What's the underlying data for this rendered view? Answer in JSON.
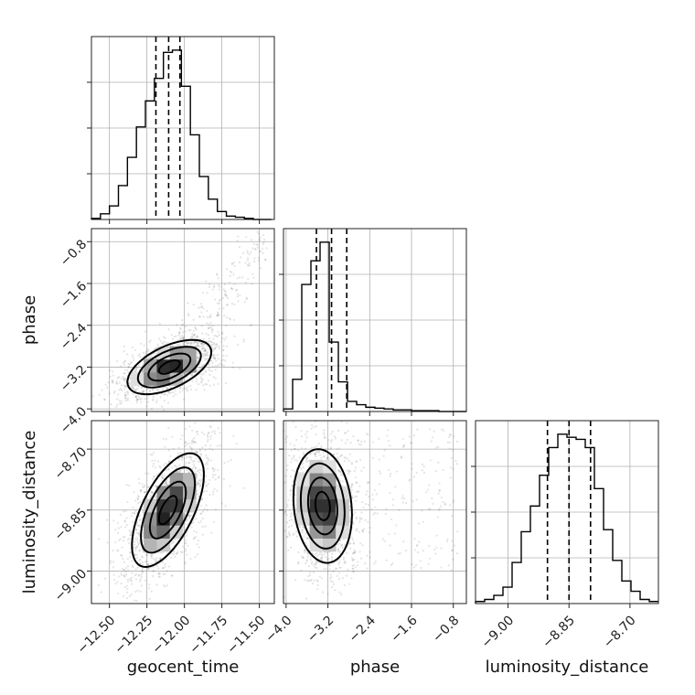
{
  "chart_data": {
    "type": "corner",
    "parameters": [
      {
        "name": "geocent_time",
        "range": [
          -12.62,
          -11.4
        ],
        "ticks": [
          -12.5,
          -12.25,
          -12.0,
          -11.75,
          -11.5
        ],
        "tick_labels": [
          "−12.50",
          "−12.25",
          "−12.00",
          "−11.75",
          "−11.50"
        ],
        "quantiles": [
          -12.19,
          -12.105,
          -12.03
        ]
      },
      {
        "name": "phase",
        "range": [
          -4.05,
          -0.55
        ],
        "ticks": [
          -4.0,
          -3.2,
          -2.4,
          -1.6,
          -0.8
        ],
        "tick_labels": [
          "−4.0",
          "−3.2",
          "−2.4",
          "−1.6",
          "−0.8"
        ],
        "quantiles": [
          -3.42,
          -3.13,
          -2.84
        ]
      },
      {
        "name": "luminosity_distance",
        "range": [
          -9.08,
          -8.63
        ],
        "ticks": [
          -9.0,
          -8.85,
          -8.7
        ],
        "tick_labels": [
          "−9.00",
          "−8.85",
          "−8.70"
        ],
        "quantiles": [
          -8.903,
          -8.85,
          -8.797
        ]
      }
    ],
    "histograms": [
      {
        "parameter": "geocent_time",
        "edges": [
          -12.62,
          -12.56,
          -12.5,
          -12.44,
          -12.38,
          -12.32,
          -12.26,
          -12.2,
          -12.14,
          -12.08,
          -12.02,
          -11.96,
          -11.9,
          -11.84,
          -11.78,
          -11.72,
          -11.66,
          -11.6,
          -11.54,
          -11.48,
          -11.42
        ],
        "counts": [
          1,
          5,
          12,
          30,
          55,
          82,
          105,
          125,
          148,
          150,
          118,
          75,
          38,
          18,
          7,
          3,
          2,
          1,
          0,
          0
        ]
      },
      {
        "parameter": "phase",
        "edges": [
          -4.05,
          -3.875,
          -3.7,
          -3.525,
          -3.35,
          -3.175,
          -3.0,
          -2.825,
          -2.65,
          -2.475,
          -2.3,
          -2.125,
          -1.95,
          -1.775,
          -1.6,
          -1.425,
          -1.25,
          -1.075,
          -0.9,
          -0.725,
          -0.55
        ],
        "counts": [
          3,
          38,
          150,
          178,
          200,
          82,
          35,
          12,
          8,
          5,
          4,
          3,
          2,
          2,
          1,
          1,
          1,
          0,
          0,
          0
        ]
      },
      {
        "parameter": "luminosity_distance",
        "edges": [
          -9.08,
          -9.0575,
          -9.035,
          -9.0125,
          -8.99,
          -8.9675,
          -8.945,
          -8.9225,
          -8.9,
          -8.8775,
          -8.855,
          -8.8325,
          -8.81,
          -8.7875,
          -8.765,
          -8.7425,
          -8.72,
          -8.6975,
          -8.675,
          -8.6525,
          -8.63
        ],
        "counts": [
          2,
          4,
          8,
          16,
          40,
          70,
          95,
          125,
          152,
          165,
          162,
          160,
          152,
          112,
          72,
          42,
          22,
          12,
          4,
          2
        ]
      }
    ],
    "pairs": [
      {
        "x": "geocent_time",
        "y": "phase",
        "mean": [
          -12.1,
          -3.2
        ],
        "sd": [
          0.14,
          0.26
        ],
        "corr": 0.55,
        "tail": {
          "x_range": [
            -12.05,
            -11.45
          ],
          "y_range": [
            -3.0,
            -0.7
          ]
        }
      },
      {
        "x": "geocent_time",
        "y": "luminosity_distance",
        "mean": [
          -12.11,
          -8.85
        ],
        "sd": [
          0.12,
          0.07
        ],
        "corr": 0.62
      },
      {
        "x": "phase",
        "y": "luminosity_distance",
        "mean": [
          -3.3,
          -8.84
        ],
        "sd": [
          0.28,
          0.07
        ],
        "corr": -0.15,
        "tail": {
          "x_range": [
            -3.0,
            -0.7
          ],
          "y_range": [
            -9.0,
            -8.65
          ]
        }
      }
    ],
    "contour_levels_sigma": [
      0.5,
      1.0,
      1.5,
      2.0
    ],
    "grid": true
  }
}
